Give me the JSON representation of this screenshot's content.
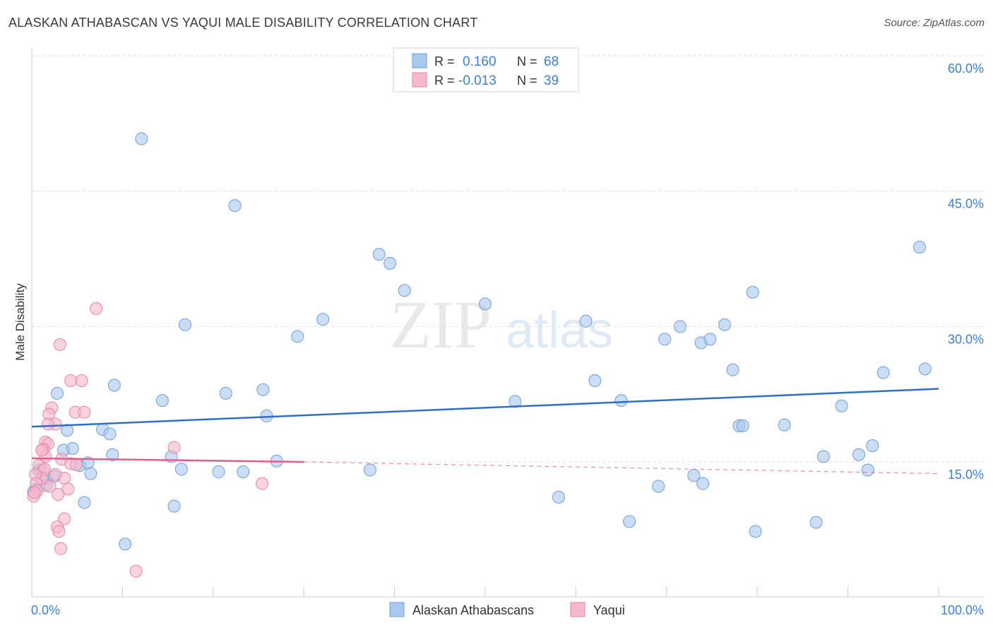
{
  "title": "ALASKAN ATHABASCAN VS YAQUI MALE DISABILITY CORRELATION CHART",
  "source": "Source: ZipAtlas.com",
  "watermark": {
    "zip": "ZIP",
    "atlas": "atlas"
  },
  "colors": {
    "blue_fill": "#a9c8ee",
    "blue_stroke": "#6d9fd9",
    "blue_line": "#2f6fc9",
    "pink_fill": "#f5b8cb",
    "pink_stroke": "#e884a6",
    "pink_line": "#e0608d",
    "grid": "#dddddd",
    "tick_text": "#3d7fd1"
  },
  "legend": {
    "rows": [
      {
        "r_label": "R =",
        "r_value": "0.160",
        "n_label": "N =",
        "n_value": "68",
        "series": "blue"
      },
      {
        "r_label": "R =",
        "r_value": "-0.013",
        "n_label": "N =",
        "n_value": "39",
        "series": "pink"
      }
    ]
  },
  "bottom_legend": [
    {
      "label": "Alaskan Athabascans",
      "series": "blue"
    },
    {
      "label": "Yaqui",
      "series": "pink"
    }
  ],
  "chart_data": {
    "type": "scatter",
    "title": "ALASKAN ATHABASCAN VS YAQUI MALE DISABILITY CORRELATION CHART",
    "xlabel": "",
    "ylabel": "Male Disability",
    "xlim": [
      0,
      105
    ],
    "ylim": [
      0,
      61
    ],
    "x_tick_labels": [
      {
        "value": 0,
        "label": "0.0%"
      },
      {
        "value": 100,
        "label": "100.0%"
      }
    ],
    "x_minor_ticks": [
      10,
      20,
      30,
      40,
      50,
      60,
      70,
      80,
      90,
      100
    ],
    "y_ticks": [
      {
        "value": 15,
        "label": "15.0%"
      },
      {
        "value": 30,
        "label": "30.0%"
      },
      {
        "value": 45,
        "label": "45.0%"
      },
      {
        "value": 60,
        "label": "60.0%"
      }
    ],
    "series": [
      {
        "name": "Alaskan Athabascans",
        "color": "blue",
        "r": 0.16,
        "n": 68,
        "trend": {
          "x0": 0,
          "y0": 18.9,
          "x1": 100,
          "y1": 23.1,
          "dashed_to": null
        },
        "points": [
          [
            12.1,
            50.8
          ],
          [
            22.4,
            43.4
          ],
          [
            38.3,
            38.0
          ],
          [
            39.5,
            37.0
          ],
          [
            41.1,
            34.0
          ],
          [
            50.0,
            32.5
          ],
          [
            97.9,
            38.8
          ],
          [
            79.5,
            33.8
          ],
          [
            16.9,
            30.2
          ],
          [
            29.3,
            28.9
          ],
          [
            32.1,
            30.8
          ],
          [
            61.1,
            30.6
          ],
          [
            71.5,
            30.0
          ],
          [
            76.4,
            30.2
          ],
          [
            69.8,
            28.6
          ],
          [
            73.8,
            28.2
          ],
          [
            74.8,
            28.6
          ],
          [
            77.3,
            25.2
          ],
          [
            93.9,
            24.9
          ],
          [
            98.5,
            25.3
          ],
          [
            2.8,
            22.6
          ],
          [
            9.1,
            23.5
          ],
          [
            14.4,
            21.8
          ],
          [
            21.4,
            22.6
          ],
          [
            25.5,
            23.0
          ],
          [
            62.1,
            24.0
          ],
          [
            53.3,
            21.7
          ],
          [
            65.0,
            21.8
          ],
          [
            25.9,
            20.1
          ],
          [
            89.3,
            21.2
          ],
          [
            3.9,
            18.5
          ],
          [
            7.8,
            18.6
          ],
          [
            8.6,
            18.1
          ],
          [
            78.0,
            19.0
          ],
          [
            78.4,
            19.0
          ],
          [
            83.0,
            19.1
          ],
          [
            3.5,
            16.3
          ],
          [
            4.5,
            16.5
          ],
          [
            8.9,
            15.8
          ],
          [
            15.4,
            15.6
          ],
          [
            27.0,
            15.1
          ],
          [
            87.3,
            15.6
          ],
          [
            91.2,
            15.8
          ],
          [
            92.7,
            16.8
          ],
          [
            5.3,
            14.6
          ],
          [
            6.2,
            14.9
          ],
          [
            16.5,
            14.2
          ],
          [
            20.6,
            13.9
          ],
          [
            23.3,
            13.9
          ],
          [
            37.3,
            14.1
          ],
          [
            92.2,
            14.1
          ],
          [
            0.8,
            14.1
          ],
          [
            1.6,
            13.2
          ],
          [
            2.5,
            13.4
          ],
          [
            6.5,
            13.7
          ],
          [
            74.0,
            12.6
          ],
          [
            73.0,
            13.5
          ],
          [
            69.1,
            12.3
          ],
          [
            0.2,
            11.7
          ],
          [
            1.6,
            12.4
          ],
          [
            5.8,
            10.5
          ],
          [
            15.7,
            10.1
          ],
          [
            58.1,
            11.1
          ],
          [
            65.9,
            8.4
          ],
          [
            79.8,
            7.3
          ],
          [
            86.5,
            8.3
          ],
          [
            10.3,
            5.9
          ],
          [
            0.5,
            12.0
          ]
        ]
      },
      {
        "name": "Yaqui",
        "color": "pink",
        "r": -0.013,
        "n": 39,
        "trend": {
          "x0": 0,
          "y0": 15.4,
          "x1": 30,
          "y1": 15.0,
          "dashed_to": {
            "x": 100,
            "y": 13.7
          }
        },
        "points": [
          [
            7.1,
            32.0
          ],
          [
            3.1,
            28.0
          ],
          [
            4.3,
            24.0
          ],
          [
            5.5,
            24.0
          ],
          [
            2.2,
            21.0
          ],
          [
            4.8,
            20.5
          ],
          [
            5.8,
            20.5
          ],
          [
            1.9,
            20.3
          ],
          [
            2.6,
            19.2
          ],
          [
            1.8,
            19.2
          ],
          [
            1.5,
            17.2
          ],
          [
            1.8,
            17.0
          ],
          [
            15.7,
            16.6
          ],
          [
            1.3,
            16.4
          ],
          [
            1.5,
            15.6
          ],
          [
            1.1,
            16.3
          ],
          [
            3.3,
            15.3
          ],
          [
            4.3,
            14.8
          ],
          [
            4.9,
            14.7
          ],
          [
            0.8,
            14.6
          ],
          [
            1.2,
            14.0
          ],
          [
            1.4,
            14.2
          ],
          [
            3.6,
            13.2
          ],
          [
            2.6,
            13.6
          ],
          [
            1.1,
            13.2
          ],
          [
            0.4,
            13.6
          ],
          [
            0.5,
            12.6
          ],
          [
            25.4,
            12.6
          ],
          [
            2.0,
            12.3
          ],
          [
            4.0,
            12.0
          ],
          [
            0.6,
            11.8
          ],
          [
            0.2,
            11.2
          ],
          [
            2.9,
            11.4
          ],
          [
            3.6,
            8.7
          ],
          [
            2.8,
            7.8
          ],
          [
            3.0,
            7.3
          ],
          [
            3.2,
            5.4
          ],
          [
            11.5,
            2.9
          ],
          [
            0.3,
            11.6
          ]
        ]
      }
    ]
  }
}
